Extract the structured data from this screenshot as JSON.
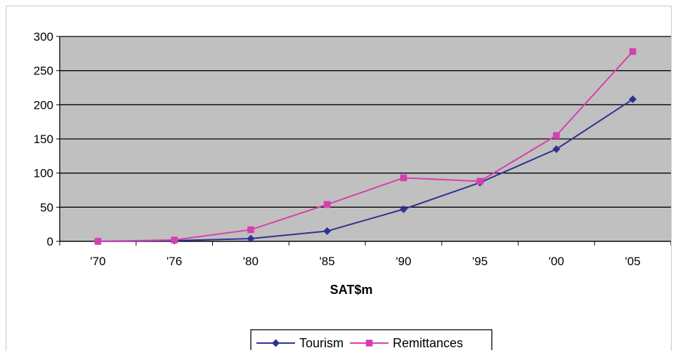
{
  "chart_data": {
    "type": "line",
    "title": "",
    "xlabel": "SAT$m",
    "ylabel": "",
    "categories": [
      "'70",
      "'76",
      "'80",
      "'85",
      "'90",
      "'95",
      "'00",
      "'05"
    ],
    "ylim": [
      0,
      300
    ],
    "yticks": [
      "0",
      "50",
      "100",
      "150",
      "200",
      "250",
      "300"
    ],
    "grid": true,
    "legend_position": "bottom",
    "plot_background": "#c0c0c0",
    "series": [
      {
        "name": "Tourism",
        "values": [
          0,
          1,
          4,
          15,
          47,
          86,
          135,
          208
        ],
        "color": "#2e3192",
        "marker": "diamond"
      },
      {
        "name": "Remittances",
        "values": [
          0,
          2,
          17,
          54,
          93,
          88,
          155,
          278
        ],
        "color": "#d63fb0",
        "marker": "square"
      }
    ]
  }
}
